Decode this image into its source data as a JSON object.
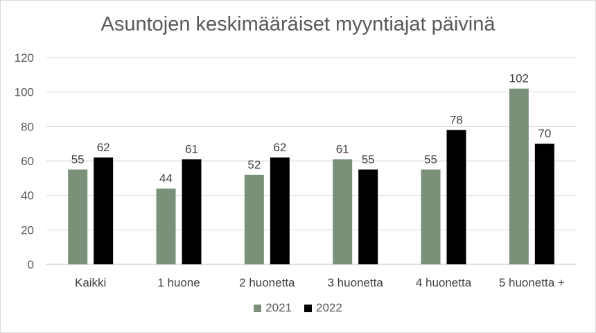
{
  "chart_data": {
    "type": "bar",
    "title": "Asuntojen keskimääräiset myyntiajat päivinä",
    "categories": [
      "Kaikki",
      "1 huone",
      "2 huonetta",
      "3 huonetta",
      "4 huonetta",
      "5 huonetta +"
    ],
    "series": [
      {
        "name": "2021",
        "color": "#7a9078",
        "values": [
          55,
          44,
          52,
          61,
          55,
          102
        ]
      },
      {
        "name": "2022",
        "color": "#000000",
        "values": [
          62,
          61,
          62,
          55,
          78,
          70
        ]
      }
    ],
    "ylim": [
      0,
      120
    ],
    "yticks": [
      0,
      20,
      40,
      60,
      80,
      100,
      120
    ],
    "grid": true,
    "legend_position": "bottom",
    "data_labels": true
  }
}
